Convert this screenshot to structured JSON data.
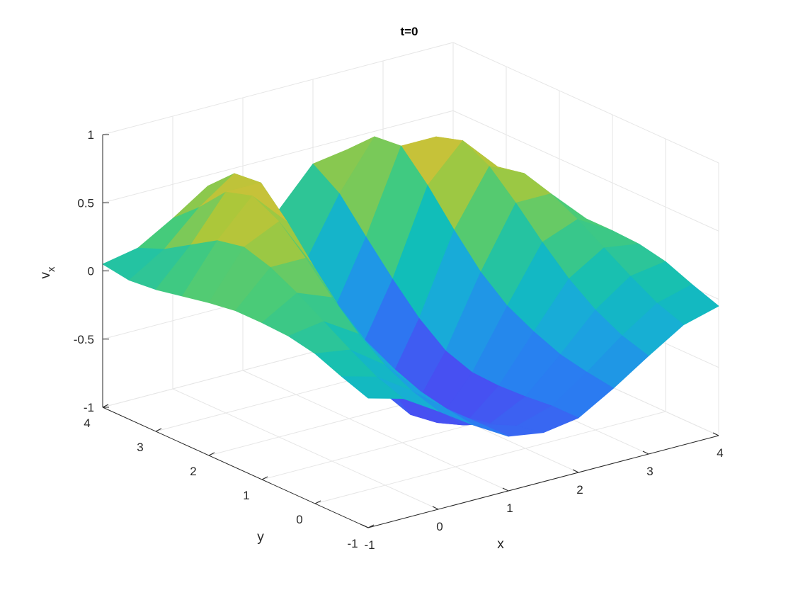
{
  "chart_data": {
    "type": "surface",
    "title": "t=0",
    "xlabel": "x",
    "ylabel": "y",
    "zlabel": "v",
    "zlabel_subscript": "x",
    "xlim": [
      -1,
      4
    ],
    "ylim": [
      -1,
      4
    ],
    "zlim": [
      -1,
      1
    ],
    "xticks": [
      -1,
      0,
      1,
      2,
      3,
      4
    ],
    "yticks": [
      -1,
      0,
      1,
      2,
      3,
      4
    ],
    "zticks": [
      -1,
      -0.5,
      0,
      0.5,
      1
    ],
    "xtick_labels": [
      "-1",
      "0",
      "1",
      "2",
      "3",
      "4"
    ],
    "ytick_labels": [
      "-1",
      "0",
      "1",
      "2",
      "3",
      "4"
    ],
    "ztick_labels": [
      "-1",
      "-0.5",
      "0",
      "0.5",
      "1"
    ],
    "grid": true,
    "colormap": "parula",
    "x": [
      -1,
      -0.5,
      0,
      0.5,
      1,
      1.5,
      2,
      2.5,
      3,
      3.5,
      4
    ],
    "y": [
      -1,
      -0.5,
      0,
      0.5,
      1,
      1.5,
      2,
      2.5,
      3,
      3.5,
      4
    ],
    "z": [
      [
        -0.05,
        -0.12,
        -0.28,
        -0.45,
        -0.6,
        -0.64,
        -0.6,
        -0.45,
        -0.28,
        -0.12,
        -0.05
      ],
      [
        0.02,
        -0.05,
        -0.22,
        -0.42,
        -0.6,
        -0.68,
        -0.6,
        -0.42,
        -0.22,
        -0.05,
        0.02
      ],
      [
        0.1,
        0.06,
        -0.12,
        -0.38,
        -0.62,
        -0.75,
        -0.62,
        -0.38,
        -0.12,
        0.06,
        0.1
      ],
      [
        0.14,
        0.18,
        0.02,
        -0.3,
        -0.63,
        -0.85,
        -0.63,
        -0.3,
        0.02,
        0.18,
        0.14
      ],
      [
        0.15,
        0.3,
        0.2,
        -0.2,
        -0.62,
        -0.92,
        -0.62,
        -0.2,
        0.2,
        0.3,
        0.15
      ],
      [
        0.15,
        0.4,
        0.4,
        -0.04,
        -0.55,
        -0.95,
        -0.55,
        -0.04,
        0.4,
        0.4,
        0.15
      ],
      [
        0.12,
        0.46,
        0.58,
        0.18,
        -0.4,
        -0.88,
        -0.4,
        0.18,
        0.58,
        0.46,
        0.12
      ],
      [
        0.08,
        0.42,
        0.68,
        0.42,
        -0.2,
        -0.7,
        -0.2,
        0.42,
        0.68,
        0.42,
        0.08
      ],
      [
        0.04,
        0.3,
        0.62,
        0.62,
        0.02,
        -0.5,
        0.02,
        0.62,
        0.62,
        0.3,
        0.04
      ],
      [
        0.02,
        0.18,
        0.42,
        0.6,
        0.25,
        -0.2,
        0.25,
        0.6,
        0.42,
        0.18,
        0.02
      ],
      [
        0.05,
        0.1,
        0.25,
        0.42,
        0.38,
        0.1,
        0.38,
        0.42,
        0.25,
        0.1,
        0.05
      ]
    ]
  }
}
